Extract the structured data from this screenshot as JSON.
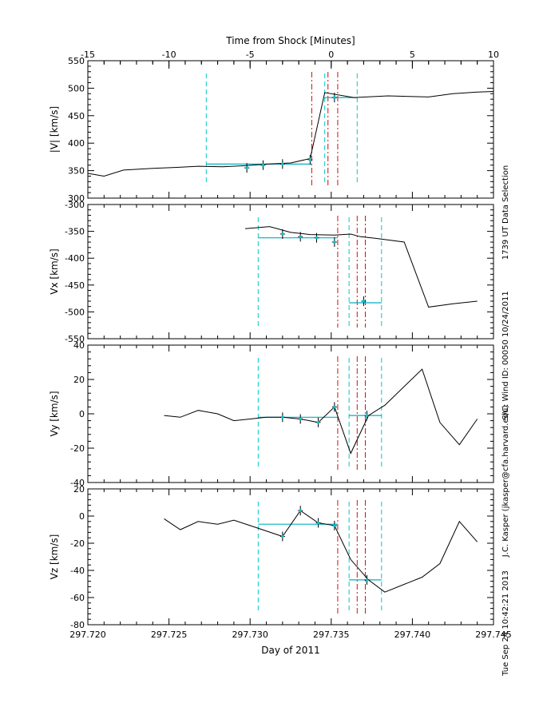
{
  "chart_data": {
    "type": "line",
    "top_axis_title": "Time from Shock [Minutes]",
    "top_axis_ticks": [
      "-15",
      "-10",
      "-5",
      "0",
      "5",
      "10"
    ],
    "top_axis_range": [
      -15,
      10
    ],
    "xlabel": "Day of 2011",
    "x_range": [
      297.72,
      297.745
    ],
    "x_tick_values": [
      297.72,
      297.725,
      297.73,
      297.735,
      297.74,
      297.745
    ],
    "x_tick_labels": [
      "297.720",
      "297.725",
      "297.730",
      "297.735",
      "297.740",
      "297.745"
    ],
    "side_text": [
      "1739 UT Data Selection",
      "S/C: Wind ID: 00050 10/24/2011",
      "J.C. Kasper (jkasper@cfa.harvard.edu)",
      "Tue Sep 24 10:42:21 2013"
    ],
    "panels": [
      {
        "ylabel": "|V| [km/s]",
        "ylim": [
          300,
          550
        ],
        "yticks": [
          300,
          350,
          400,
          450,
          500,
          550
        ],
        "line": {
          "x": [
            297.72,
            297.721,
            297.7222,
            297.724,
            297.7255,
            297.7268,
            297.7283,
            297.7297,
            297.7312,
            297.7325,
            297.7337,
            297.7346,
            297.7364,
            297.7385,
            297.741,
            297.7425,
            297.744,
            297.745
          ],
          "y": [
            345,
            340,
            351,
            354,
            356,
            358,
            357,
            359,
            362,
            364,
            372,
            492,
            483,
            486,
            484,
            490,
            493,
            494
          ]
        },
        "points": {
          "x": [
            297.7298,
            297.7308,
            297.732,
            297.7337,
            297.7352
          ],
          "y": [
            355,
            360,
            362,
            370,
            483
          ]
        },
        "cyan_dashed_x": [
          297.7273,
          297.7346,
          297.7366
        ],
        "red_dashdot_x": [
          297.7338,
          297.7348,
          297.7354
        ],
        "pre_fit": {
          "x": [
            297.7273,
            297.7338
          ],
          "y": 362
        },
        "post_fit": {
          "x": [
            297.7346,
            297.7366
          ],
          "y": 483
        }
      },
      {
        "ylabel": "Vx [km/s]",
        "ylim": [
          -550,
          -300
        ],
        "yticks": [
          -300,
          -350,
          -400,
          -450,
          -500,
          -550
        ],
        "line": {
          "x": [
            297.7297,
            297.7312,
            297.7325,
            297.7337,
            297.7352,
            297.7362,
            297.7368,
            297.7377,
            297.7395,
            297.741,
            297.7425,
            297.744
          ],
          "y": [
            -345,
            -341,
            -352,
            -356,
            -357,
            -355,
            -360,
            -363,
            -370,
            -491,
            -485,
            -480
          ]
        },
        "points": {
          "x": [
            297.732,
            297.7331,
            297.7341,
            297.7352,
            297.737
          ],
          "y": [
            -355,
            -360,
            -362,
            -370,
            -480
          ]
        },
        "cyan_dashed_x": [
          297.7305,
          297.7361,
          297.7381
        ],
        "red_dashdot_x": [
          297.7354,
          297.7366,
          297.7371
        ],
        "pre_fit": {
          "x": [
            297.7305,
            297.7354
          ],
          "y": -362
        },
        "post_fit": {
          "x": [
            297.7361,
            297.7381
          ],
          "y": -483
        }
      },
      {
        "ylabel": "Vy [km/s]",
        "ylim": [
          -40,
          40
        ],
        "yticks": [
          -40,
          -20,
          0,
          20,
          40
        ],
        "line": {
          "x": [
            297.7247,
            297.7257,
            297.7268,
            297.728,
            297.729,
            297.73,
            297.731,
            297.732,
            297.7331,
            297.7342,
            297.7352,
            297.7362,
            297.7373,
            297.7383,
            297.7406,
            297.7417,
            297.7429,
            297.744
          ],
          "y": [
            -1,
            -2,
            2,
            0,
            -4,
            -3,
            -2,
            -2,
            -3,
            -5,
            4,
            -23,
            -1,
            5,
            26,
            -5,
            -18,
            -3
          ]
        },
        "points": {
          "x": [
            297.732,
            297.7331,
            297.7342,
            297.7352,
            297.7372
          ],
          "y": [
            -2,
            -3,
            -5,
            4,
            -1
          ]
        },
        "cyan_dashed_x": [
          297.7305,
          297.7361,
          297.7381
        ],
        "red_dashdot_x": [
          297.7354,
          297.7366,
          297.7371
        ],
        "pre_fit": {
          "x": [
            297.7305,
            297.7354
          ],
          "y": -2
        },
        "post_fit": {
          "x": [
            297.7361,
            297.7381
          ],
          "y": -1
        }
      },
      {
        "ylabel": "Vz [km/s]",
        "ylim": [
          -80,
          20
        ],
        "yticks": [
          -80,
          -60,
          -40,
          -20,
          0,
          20
        ],
        "line": {
          "x": [
            297.7247,
            297.7257,
            297.7268,
            297.728,
            297.729,
            297.73,
            297.732,
            297.7331,
            297.7342,
            297.7352,
            297.7362,
            297.7373,
            297.7383,
            297.7406,
            297.7417,
            297.7429,
            297.744
          ],
          "y": [
            -2,
            -10,
            -4,
            -6,
            -3,
            -7,
            -15,
            4,
            -5,
            -7,
            -32,
            -47,
            -56,
            -45,
            -35,
            -4,
            -19
          ]
        },
        "points": {
          "x": [
            297.732,
            297.7331,
            297.7342,
            297.7352,
            297.7372
          ],
          "y": [
            -15,
            4,
            -5,
            -7,
            -47
          ]
        },
        "cyan_dashed_x": [
          297.7305,
          297.7361,
          297.7381
        ],
        "red_dashdot_x": [
          297.7354,
          297.7366,
          297.7371
        ],
        "pre_fit": {
          "x": [
            297.7305,
            297.7354
          ],
          "y": -6
        },
        "post_fit": {
          "x": [
            297.7361,
            297.7381
          ],
          "y": -47
        }
      }
    ]
  }
}
